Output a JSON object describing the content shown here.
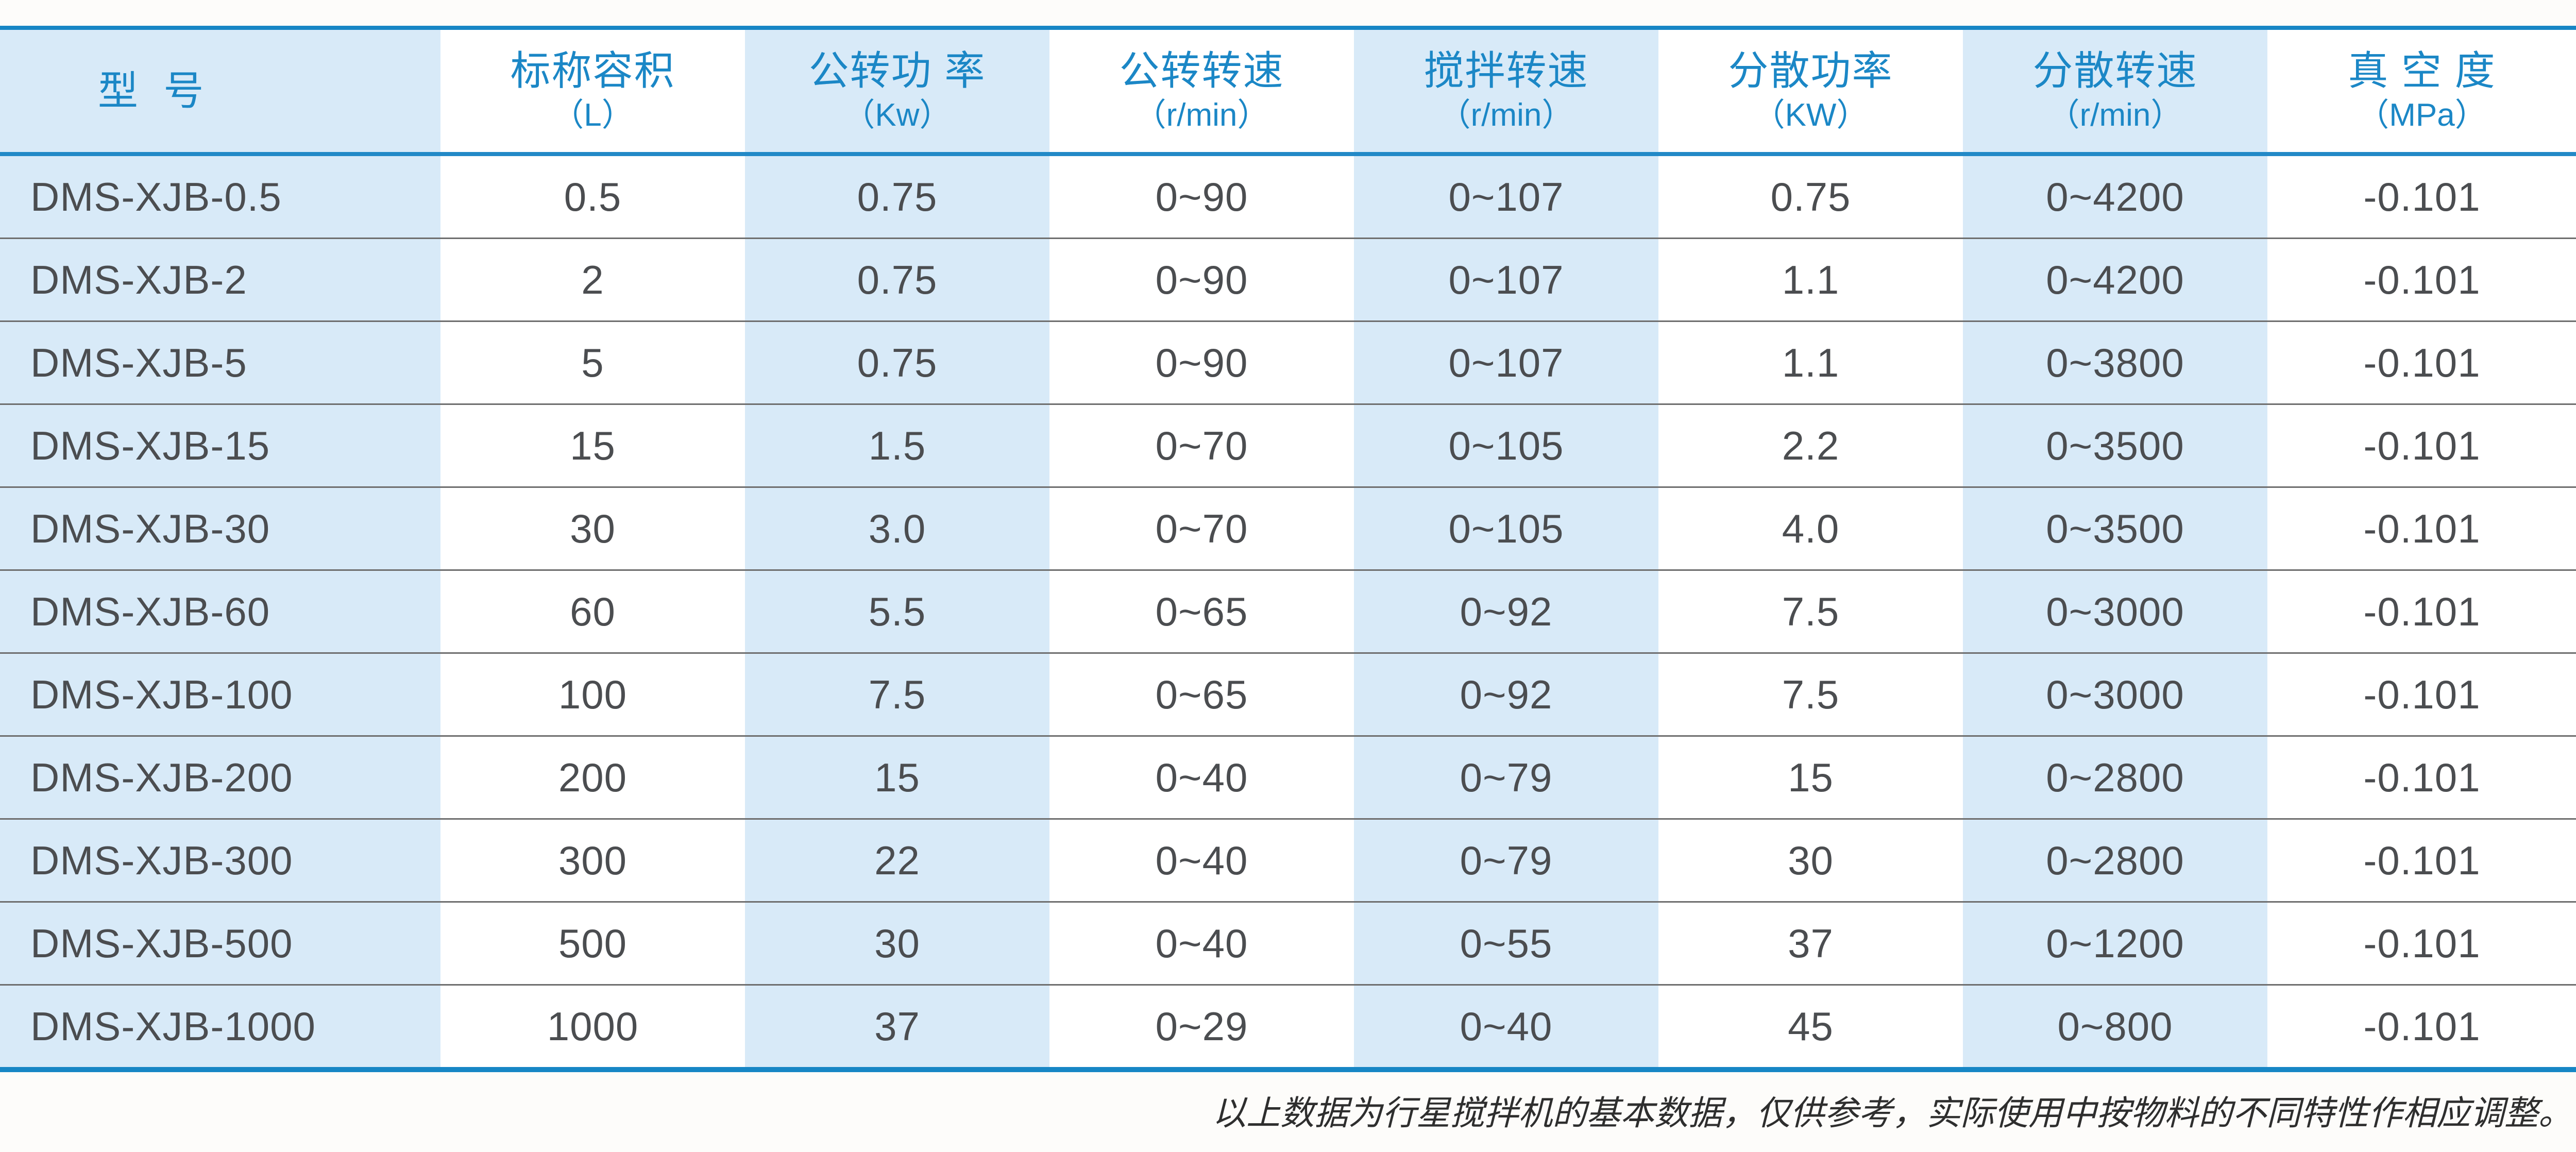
{
  "table": {
    "columns": [
      {
        "key": "model",
        "label": "型  号",
        "unit": ""
      },
      {
        "key": "volume",
        "label": "标称容积",
        "unit": "（L）"
      },
      {
        "key": "rev-power",
        "label": "公转功 率",
        "unit": "（Kw）"
      },
      {
        "key": "rev-speed",
        "label": "公转转速",
        "unit": "（r/min）"
      },
      {
        "key": "stir-speed",
        "label": "搅拌转速",
        "unit": "（r/min）"
      },
      {
        "key": "disp-power",
        "label": "分散功率",
        "unit": "（KW）"
      },
      {
        "key": "disp-speed",
        "label": "分散转速",
        "unit": "（r/min）"
      },
      {
        "key": "vacuum",
        "label": "真 空 度",
        "unit": "（MPa）"
      }
    ],
    "rows": [
      [
        "DMS-XJB-0.5",
        "0.5",
        "0.75",
        "0~90",
        "0~107",
        "0.75",
        "0~4200",
        "-0.101"
      ],
      [
        "DMS-XJB-2",
        "2",
        "0.75",
        "0~90",
        "0~107",
        "1.1",
        "0~4200",
        "-0.101"
      ],
      [
        "DMS-XJB-5",
        "5",
        "0.75",
        "0~90",
        "0~107",
        "1.1",
        "0~3800",
        "-0.101"
      ],
      [
        "DMS-XJB-15",
        "15",
        "1.5",
        "0~70",
        "0~105",
        "2.2",
        "0~3500",
        "-0.101"
      ],
      [
        "DMS-XJB-30",
        "30",
        "3.0",
        "0~70",
        "0~105",
        "4.0",
        "0~3500",
        "-0.101"
      ],
      [
        "DMS-XJB-60",
        "60",
        "5.5",
        "0~65",
        "0~92",
        "7.5",
        "0~3000",
        "-0.101"
      ],
      [
        "DMS-XJB-100",
        "100",
        "7.5",
        "0~65",
        "0~92",
        "7.5",
        "0~3000",
        "-0.101"
      ],
      [
        "DMS-XJB-200",
        "200",
        "15",
        "0~40",
        "0~79",
        "15",
        "0~2800",
        "-0.101"
      ],
      [
        "DMS-XJB-300",
        "300",
        "22",
        "0~40",
        "0~79",
        "30",
        "0~2800",
        "-0.101"
      ],
      [
        "DMS-XJB-500",
        "500",
        "30",
        "0~40",
        "0~55",
        "37",
        "0~1200",
        "-0.101"
      ],
      [
        "DMS-XJB-1000",
        "1000",
        "37",
        "0~29",
        "0~40",
        "45",
        "0~800",
        "-0.101"
      ]
    ]
  },
  "footnote": "以上数据为行星搅拌机的基本数据，仅供参考，实际使用中按物料的不同特性作相应调整。",
  "colors": {
    "accent_border": "#1786c5",
    "header_separator": "#2289c7",
    "column_stripe": "#d8eaf8",
    "header_text": "#1b87c6",
    "body_text": "#4b4d50",
    "row_separator": "#6e6e6e",
    "footnote_text": "#2e2e2e"
  }
}
